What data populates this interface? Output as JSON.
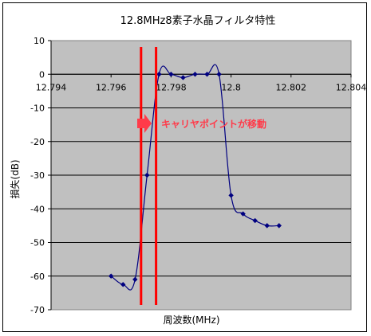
{
  "chart_data": {
    "type": "scatter",
    "title": "12.8MHz8素子水晶フィルタ特性",
    "xlabel": "周波数(MHz)",
    "ylabel": "損失(dB)",
    "xlim": [
      12.794,
      12.804
    ],
    "ylim": [
      -70,
      10
    ],
    "xticks": [
      "12.794",
      "12.796",
      "12.798",
      "12.8",
      "12.802",
      "12.804"
    ],
    "xtick_values": [
      12.794,
      12.796,
      12.798,
      12.8,
      12.802,
      12.804
    ],
    "yticks": [
      "10",
      "0",
      "-10",
      "-20",
      "-30",
      "-40",
      "-50",
      "-60",
      "-70"
    ],
    "ytick_values": [
      10,
      0,
      -10,
      -20,
      -30,
      -40,
      -50,
      -60,
      -70
    ],
    "grid": "horizontal",
    "plot_background": "#c0c0c0",
    "series": [
      {
        "color": "#000080",
        "smooth": true,
        "x": [
          12.796,
          12.7964,
          12.7968,
          12.7972,
          12.7976,
          12.798,
          12.7984,
          12.7988,
          12.7992,
          12.7996,
          12.8,
          12.8004,
          12.8008,
          12.8012,
          12.8016
        ],
        "y": [
          -60,
          -62.5,
          -61,
          -30,
          0,
          0,
          -1,
          0,
          0,
          0,
          -36,
          -41.5,
          -43.5,
          -45,
          -45
        ]
      }
    ],
    "markers": {
      "color": "#ff0000",
      "x": [
        12.797,
        12.7975
      ]
    },
    "annotation": {
      "text": "キャリヤポイントが移動",
      "color": "#ff3b4a"
    }
  }
}
